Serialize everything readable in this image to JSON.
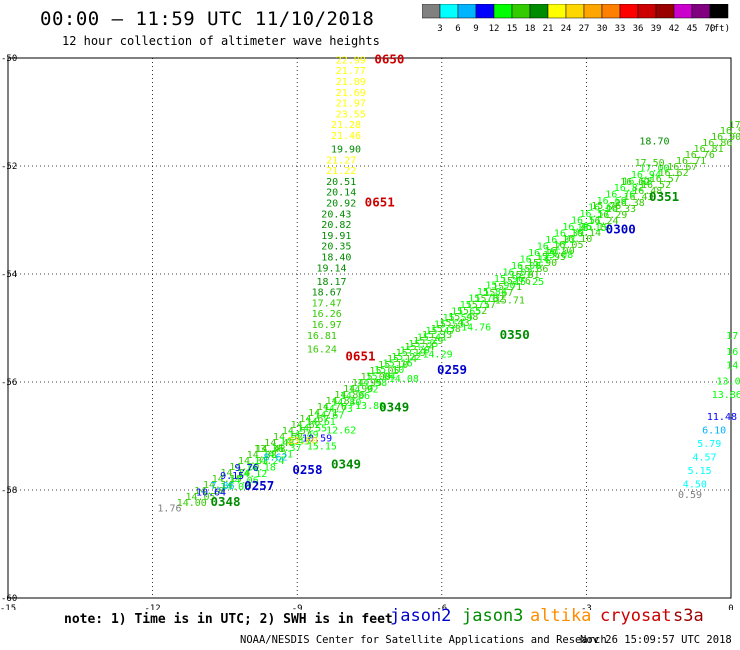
{
  "header": {
    "title": "00:00 – 11:59 UTC 11/10/2018",
    "subtitle": "12 hour collection of altimeter wave heights"
  },
  "colorbar": {
    "labels": [
      "3",
      "6",
      "9",
      "12",
      "15",
      "18",
      "21",
      "24",
      "27",
      "30",
      "33",
      "36",
      "39",
      "42",
      "45",
      "70"
    ],
    "unit": "(ft)",
    "colors": [
      "#808080",
      "#00ffff",
      "#00b4ff",
      "#0000ff",
      "#00ff00",
      "#33cc00",
      "#008c00",
      "#ffff00",
      "#ffd700",
      "#ffa500",
      "#ff7f00",
      "#ff0000",
      "#cc0000",
      "#990000",
      "#cc00cc",
      "#800080",
      "#000000"
    ]
  },
  "note": "note: 1) Time is in UTC; 2) SWH is in feet",
  "legend": {
    "jason2": "jason2",
    "jason3": "jason3",
    "altika": "altika",
    "cryosat": "cryosat",
    "s3a": "s3a"
  },
  "footer": {
    "left": "NOAA/NESDIS Center for Satellite Applications and Research",
    "right": "Nov 26 15:09:57 UTC 2018"
  },
  "chart_data": {
    "type": "scatter",
    "xlim": [
      -15,
      0
    ],
    "ylim": [
      -60,
      -50
    ],
    "xticks": [
      "-15",
      "-12",
      "-9",
      "-6",
      "-3",
      "0"
    ],
    "yticks": [
      "-50",
      "-52",
      "-54",
      "-56",
      "-58",
      "-60"
    ],
    "grid": true,
    "points": [
      {
        "x": -11.9,
        "y": -58.4,
        "label": "1.76",
        "color": "#808080"
      },
      {
        "x": -11.1,
        "y": -58.1,
        "label": "10.64",
        "color": "#0000ff"
      },
      {
        "x": -10.8,
        "y": -57.98,
        "label": "7.86",
        "color": "#00b4ff"
      },
      {
        "x": -10.6,
        "y": -57.8,
        "label": "9.15",
        "color": "#0000ff"
      },
      {
        "x": -10.3,
        "y": -57.65,
        "label": "9.76",
        "color": "#0000ff"
      },
      {
        "x": -9.7,
        "y": -57.45,
        "label": "8.62",
        "color": "#00b4ff"
      },
      {
        "x": -9.9,
        "y": -57.3,
        "label": "13.36",
        "color": "#33cc00"
      },
      {
        "x": -8.9,
        "y": -57.1,
        "label": "10.59",
        "color": "#0000ff"
      },
      {
        "x": -9.2,
        "y": -57.15,
        "label": "23.60",
        "color": "#ffd700"
      },
      {
        "x": -8.8,
        "y": -57.25,
        "label": "15.15",
        "color": "#00ff00"
      },
      {
        "x": -12.3,
        "y": -59.0,
        "label": "",
        "color": "#808080"
      },
      {
        "x": -8.2,
        "y": -50.1,
        "label": "22.99",
        "color": "#ffff00"
      },
      {
        "x": -8.2,
        "y": -50.3,
        "label": "21.77",
        "color": "#ffff00"
      },
      {
        "x": -8.2,
        "y": -50.5,
        "label": "21.89",
        "color": "#ffff00"
      },
      {
        "x": -8.2,
        "y": -50.7,
        "label": "21.69",
        "color": "#ffff00"
      },
      {
        "x": -8.2,
        "y": -50.9,
        "label": "21.97",
        "color": "#ffff00"
      },
      {
        "x": -8.2,
        "y": -51.1,
        "label": "23.55",
        "color": "#ffff00"
      },
      {
        "x": -8.3,
        "y": -51.3,
        "label": "21.28",
        "color": "#ffff00"
      },
      {
        "x": -8.3,
        "y": -51.5,
        "label": "21.46",
        "color": "#ffff00"
      },
      {
        "x": -8.3,
        "y": -51.75,
        "label": "19.90",
        "color": "#008c00"
      },
      {
        "x": -8.4,
        "y": -51.95,
        "label": "21.27",
        "color": "#ffff00"
      },
      {
        "x": -8.4,
        "y": -52.15,
        "label": "21.22",
        "color": "#ffff00"
      },
      {
        "x": -8.4,
        "y": -52.35,
        "label": "20.51",
        "color": "#008c00"
      },
      {
        "x": -8.4,
        "y": -52.55,
        "label": "20.14",
        "color": "#008c00"
      },
      {
        "x": -8.4,
        "y": -52.75,
        "label": "20.92",
        "color": "#008c00"
      },
      {
        "x": -8.5,
        "y": -52.95,
        "label": "20.43",
        "color": "#008c00"
      },
      {
        "x": -8.5,
        "y": -53.15,
        "label": "20.82",
        "color": "#008c00"
      },
      {
        "x": -8.5,
        "y": -53.35,
        "label": "19.91",
        "color": "#008c00"
      },
      {
        "x": -8.5,
        "y": -53.55,
        "label": "20.35",
        "color": "#008c00"
      },
      {
        "x": -8.5,
        "y": -53.75,
        "label": "18.40",
        "color": "#008c00"
      },
      {
        "x": -8.6,
        "y": -53.95,
        "label": "19.14",
        "color": "#008c00"
      },
      {
        "x": -8.6,
        "y": -54.2,
        "label": "18.17",
        "color": "#008c00"
      },
      {
        "x": -8.7,
        "y": -54.4,
        "label": "18.67",
        "color": "#008c00"
      },
      {
        "x": -8.7,
        "y": -54.6,
        "label": "17.47",
        "color": "#33cc00"
      },
      {
        "x": -8.7,
        "y": -54.8,
        "label": "16.26",
        "color": "#33cc00"
      },
      {
        "x": -8.7,
        "y": -55.0,
        "label": "16.97",
        "color": "#33cc00"
      },
      {
        "x": -8.8,
        "y": -55.2,
        "label": "16.81",
        "color": "#33cc00"
      },
      {
        "x": -8.8,
        "y": -55.45,
        "label": "16.24",
        "color": "#33cc00"
      },
      {
        "x": -1.9,
        "y": -51.6,
        "label": "18.70",
        "color": "#008c00"
      },
      {
        "x": -2.0,
        "y": -52.0,
        "label": "17.50",
        "color": "#33cc00"
      },
      {
        "x": -2.3,
        "y": -52.35,
        "label": "16.62",
        "color": "#33cc00"
      },
      {
        "x": -2.9,
        "y": -52.8,
        "label": "15.76",
        "color": "#33cc00"
      },
      {
        "x": -3.2,
        "y": -53.2,
        "label": "15.15",
        "color": "#00ff00"
      },
      {
        "x": -3.9,
        "y": -53.7,
        "label": "15.08",
        "color": "#00ff00"
      },
      {
        "x": -4.5,
        "y": -54.2,
        "label": "15.25",
        "color": "#00ff00"
      },
      {
        "x": -4.9,
        "y": -54.55,
        "label": "15.71",
        "color": "#33cc00"
      },
      {
        "x": -5.6,
        "y": -55.05,
        "label": "14.76",
        "color": "#00ff00"
      },
      {
        "x": -6.4,
        "y": -55.55,
        "label": "14.29",
        "color": "#00ff00"
      },
      {
        "x": -7.1,
        "y": -56.0,
        "label": "14.08",
        "color": "#00ff00"
      },
      {
        "x": -7.8,
        "y": -56.5,
        "label": "13.80",
        "color": "#00ff00"
      },
      {
        "x": -8.4,
        "y": -56.95,
        "label": "12.62",
        "color": "#00ff00"
      },
      {
        "x": -0.1,
        "y": -55.2,
        "label": "17",
        "color": "#00ff00"
      },
      {
        "x": -0.1,
        "y": -55.5,
        "label": "16.",
        "color": "#00ff00"
      },
      {
        "x": -0.1,
        "y": -55.75,
        "label": "14.",
        "color": "#00ff00"
      },
      {
        "x": -0.3,
        "y": -56.05,
        "label": "13.05",
        "color": "#00ff00"
      },
      {
        "x": -0.4,
        "y": -56.3,
        "label": "13.86",
        "color": "#00ff00"
      },
      {
        "x": -0.5,
        "y": -56.7,
        "label": "11.48",
        "color": "#0000ff"
      },
      {
        "x": -0.6,
        "y": -56.95,
        "label": "6.10",
        "color": "#00b4ff"
      },
      {
        "x": -0.7,
        "y": -57.2,
        "label": "5.79",
        "color": "#00ffff"
      },
      {
        "x": -0.8,
        "y": -57.45,
        "label": "4.57",
        "color": "#00ffff"
      },
      {
        "x": -0.9,
        "y": -57.7,
        "label": "5.15",
        "color": "#00ffff"
      },
      {
        "x": -1.0,
        "y": -57.95,
        "label": "4.50",
        "color": "#00ffff"
      },
      {
        "x": -1.1,
        "y": -58.15,
        "label": "0.59",
        "color": "#808080"
      }
    ],
    "times": [
      {
        "x": -7.4,
        "y": -50.1,
        "label": "0650",
        "color": "#cc0000"
      },
      {
        "x": -7.6,
        "y": -52.75,
        "label": "0651",
        "color": "#cc0000"
      },
      {
        "x": -8.0,
        "y": -55.6,
        "label": "0651",
        "color": "#cc0000"
      },
      {
        "x": -1.7,
        "y": -52.65,
        "label": "0351",
        "color": "#008c00"
      },
      {
        "x": -2.6,
        "y": -53.25,
        "label": "0300",
        "color": "#0000cc"
      },
      {
        "x": -4.8,
        "y": -55.2,
        "label": "0350",
        "color": "#008c00"
      },
      {
        "x": -6.1,
        "y": -55.85,
        "label": "0259",
        "color": "#0000cc"
      },
      {
        "x": -7.3,
        "y": -56.55,
        "label": "0349",
        "color": "#008c00"
      },
      {
        "x": -8.3,
        "y": -57.6,
        "label": "0349",
        "color": "#008c00"
      },
      {
        "x": -9.1,
        "y": -57.7,
        "label": "0258",
        "color": "#0000cc"
      },
      {
        "x": -10.1,
        "y": -58.0,
        "label": "0257",
        "color": "#0000cc"
      },
      {
        "x": -10.8,
        "y": -58.3,
        "label": "0348",
        "color": "#008c00"
      }
    ],
    "tracks": [
      {
        "color": "#33cc00",
        "start": [
          -11.5,
          -58.3
        ],
        "end": [
          -0.05,
          -51.3
        ],
        "labels": 64
      },
      {
        "color": "#00ff00",
        "start": [
          -10.6,
          -58.0
        ],
        "end": [
          -1.9,
          -52.1
        ],
        "labels": 50
      }
    ]
  }
}
